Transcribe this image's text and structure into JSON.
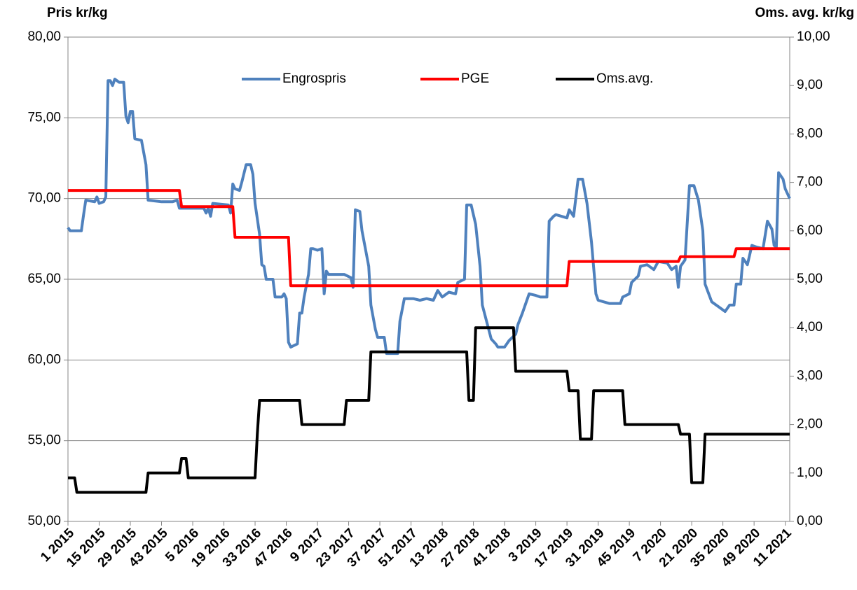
{
  "chart_data": {
    "type": "line",
    "y_label": "Pris kr/kg",
    "y2_label": "Oms. avg. kr/kg",
    "xlim": [
      0,
      324
    ],
    "xticks": [
      {
        "value": 0,
        "label": "1 2015"
      },
      {
        "value": 14,
        "label": "15 2015"
      },
      {
        "value": 28,
        "label": "29 2015"
      },
      {
        "value": 42,
        "label": "43 2015"
      },
      {
        "value": 56,
        "label": "5 2016"
      },
      {
        "value": 70,
        "label": "19 2016"
      },
      {
        "value": 84,
        "label": "33 2016"
      },
      {
        "value": 98,
        "label": "47 2016"
      },
      {
        "value": 112,
        "label": "9 2017"
      },
      {
        "value": 126,
        "label": "23 2017"
      },
      {
        "value": 140,
        "label": "37 2017"
      },
      {
        "value": 154,
        "label": "51 2017"
      },
      {
        "value": 168,
        "label": "13 2018"
      },
      {
        "value": 182,
        "label": "27 2018"
      },
      {
        "value": 196,
        "label": "41 2018"
      },
      {
        "value": 210,
        "label": "3 2019"
      },
      {
        "value": 224,
        "label": "17 2019"
      },
      {
        "value": 238,
        "label": "31 2019"
      },
      {
        "value": 252,
        "label": "45 2019"
      },
      {
        "value": 266,
        "label": "7 2020"
      },
      {
        "value": 280,
        "label": "21 2020"
      },
      {
        "value": 294,
        "label": "35 2020"
      },
      {
        "value": 308,
        "label": "49 2020"
      },
      {
        "value": 322,
        "label": "11 2021"
      }
    ],
    "ylim": [
      50,
      80
    ],
    "yticks": [
      {
        "value": 50,
        "label": "50,00"
      },
      {
        "value": 55,
        "label": "55,00"
      },
      {
        "value": 60,
        "label": "60,00"
      },
      {
        "value": 65,
        "label": "65,00"
      },
      {
        "value": 70,
        "label": "70,00"
      },
      {
        "value": 75,
        "label": "75,00"
      },
      {
        "value": 80,
        "label": "80,00"
      }
    ],
    "y2lim": [
      0,
      10
    ],
    "y2ticks": [
      {
        "value": 0,
        "label": "0,00"
      },
      {
        "value": 1,
        "label": "1,00"
      },
      {
        "value": 2,
        "label": "2,00"
      },
      {
        "value": 3,
        "label": "3,00"
      },
      {
        "value": 4,
        "label": "4,00"
      },
      {
        "value": 5,
        "label": "5,00"
      },
      {
        "value": 6,
        "label": "6,00"
      },
      {
        "value": 7,
        "label": "7,00"
      },
      {
        "value": 8,
        "label": "8,00"
      },
      {
        "value": 9,
        "label": "9,00"
      },
      {
        "value": 10,
        "label": "10,00"
      }
    ],
    "grid": true,
    "legend": "top",
    "series": [
      {
        "name": "Engrospris",
        "color": "#4f81bd",
        "axis": "y",
        "x": [
          0,
          1,
          6,
          7,
          8,
          12,
          13,
          14,
          16,
          17,
          18,
          19,
          20,
          21,
          23,
          25,
          26,
          27,
          28,
          29,
          30,
          33,
          35,
          36,
          42,
          47,
          49,
          50,
          56,
          61,
          62,
          63,
          64,
          65,
          72,
          73,
          74,
          75,
          77,
          78,
          80,
          82,
          83,
          84,
          86,
          87,
          88,
          89,
          92,
          93,
          96,
          97,
          98,
          99,
          100,
          103,
          104,
          105,
          106,
          108,
          109,
          110,
          112,
          114,
          115,
          116,
          117,
          124,
          127,
          128,
          129,
          131,
          132,
          135,
          136,
          138,
          139,
          142,
          143,
          148,
          149,
          151,
          155,
          158,
          161,
          164,
          166,
          168,
          171,
          174,
          175,
          178,
          179,
          181,
          183,
          185,
          186,
          190,
          192,
          193,
          196,
          198,
          201,
          202,
          204,
          205,
          207,
          210,
          212,
          215,
          216,
          218,
          219,
          224,
          225,
          227,
          229,
          231,
          233,
          235,
          237,
          238,
          243,
          248,
          249,
          252,
          253,
          256,
          257,
          260,
          263,
          265,
          269,
          271,
          273,
          274,
          275,
          277,
          279,
          281,
          283,
          285,
          286,
          289,
          291,
          293,
          295,
          297,
          299,
          300,
          302,
          303,
          305,
          307,
          309,
          312,
          314,
          316,
          317,
          318,
          319,
          321,
          322,
          324
        ],
        "values": [
          68.2,
          68.0,
          68.0,
          69.0,
          69.9,
          69.8,
          70.1,
          69.7,
          69.8,
          70.1,
          77.3,
          77.3,
          77.0,
          77.4,
          77.2,
          77.2,
          75.1,
          74.7,
          75.4,
          75.4,
          73.7,
          73.6,
          72.1,
          69.9,
          69.8,
          69.8,
          69.9,
          69.4,
          69.4,
          69.4,
          69.1,
          69.4,
          68.9,
          69.7,
          69.6,
          69.1,
          70.9,
          70.6,
          70.5,
          71.0,
          72.1,
          72.1,
          71.5,
          69.7,
          67.8,
          65.9,
          65.8,
          65.0,
          65.0,
          63.9,
          63.9,
          64.1,
          63.8,
          61.1,
          60.8,
          61.0,
          62.9,
          62.9,
          63.9,
          65.3,
          66.9,
          66.9,
          66.8,
          66.9,
          64.1,
          65.5,
          65.3,
          65.3,
          65.1,
          64.5,
          69.3,
          69.2,
          68.0,
          65.8,
          63.4,
          61.9,
          61.4,
          61.4,
          60.4,
          60.4,
          62.4,
          63.8,
          63.8,
          63.7,
          63.8,
          63.7,
          64.3,
          63.9,
          64.2,
          64.1,
          64.8,
          65.0,
          69.6,
          69.6,
          68.4,
          65.8,
          63.4,
          61.3,
          61.0,
          60.8,
          60.8,
          61.2,
          61.6,
          62.2,
          62.9,
          63.3,
          64.1,
          64.0,
          63.9,
          63.9,
          68.6,
          68.9,
          69.0,
          68.8,
          69.3,
          68.9,
          71.2,
          71.2,
          69.7,
          67.3,
          64.1,
          63.7,
          63.5,
          63.5,
          63.9,
          64.1,
          64.8,
          65.2,
          65.8,
          65.9,
          65.6,
          66.1,
          66.0,
          65.6,
          65.8,
          64.5,
          65.8,
          66.2,
          70.8,
          70.8,
          69.9,
          68.0,
          64.7,
          63.6,
          63.4,
          63.2,
          63.0,
          63.4,
          63.4,
          64.7,
          64.7,
          66.3,
          65.9,
          67.1,
          67.0,
          66.9,
          68.6,
          68.1,
          67.1,
          67.0,
          71.6,
          71.2,
          70.6,
          70.0
        ]
      },
      {
        "name": "PGE",
        "color": "#ff0000",
        "axis": "y",
        "x": [
          0,
          50,
          51,
          74,
          75,
          99,
          100,
          224,
          225,
          274,
          275,
          299,
          300,
          324
        ],
        "values": [
          70.5,
          70.5,
          69.5,
          69.5,
          67.6,
          67.6,
          64.6,
          64.6,
          66.1,
          66.1,
          66.4,
          66.4,
          66.9,
          66.9
        ]
      },
      {
        "name": "Oms.avg.",
        "color": "#000000",
        "axis": "y2",
        "x": [
          0,
          3,
          4,
          35,
          36,
          50,
          51,
          53,
          54,
          84,
          85,
          86,
          104,
          105,
          124,
          125,
          135,
          136,
          179,
          180,
          182,
          183,
          200,
          201,
          224,
          225,
          229,
          230,
          235,
          236,
          249,
          250,
          274,
          275,
          279,
          280,
          285,
          286,
          324
        ],
        "values": [
          0.9,
          0.9,
          0.6,
          0.6,
          1.0,
          1.0,
          1.3,
          1.3,
          0.9,
          0.9,
          1.8,
          2.5,
          2.5,
          2.0,
          2.0,
          2.5,
          2.5,
          3.5,
          3.5,
          2.5,
          2.5,
          4.0,
          4.0,
          3.1,
          3.1,
          2.7,
          2.7,
          1.7,
          1.7,
          2.7,
          2.7,
          2.0,
          2.0,
          1.8,
          1.8,
          0.8,
          0.8,
          1.8,
          1.8
        ]
      }
    ]
  }
}
